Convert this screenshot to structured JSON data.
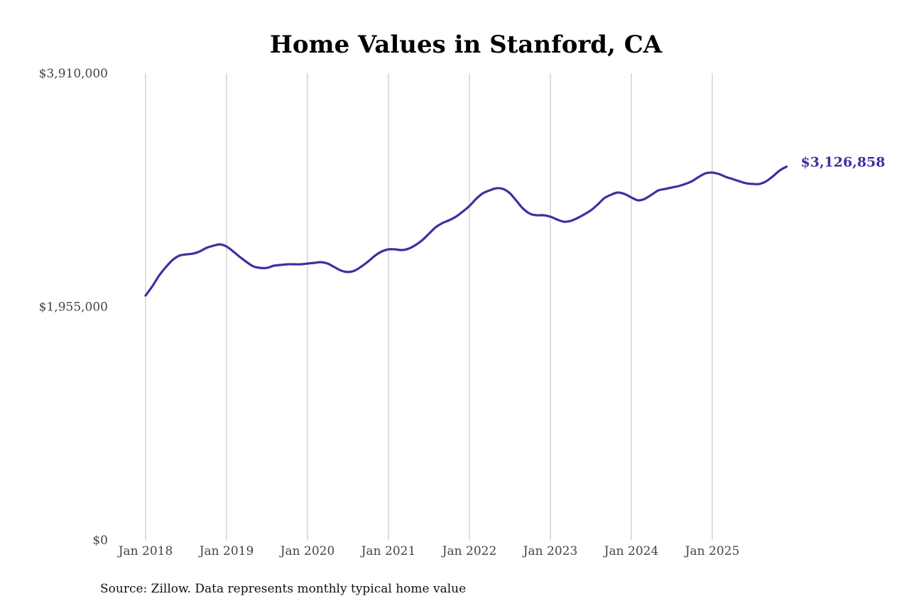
{
  "chart_data": {
    "type": "line",
    "title": "Home Values in Stanford, CA",
    "xlabel": "",
    "ylabel": "",
    "ylim": [
      0,
      3910000
    ],
    "y_tick_labels": [
      "$0",
      "$1,955,000",
      "$3,910,000"
    ],
    "y_ticks": [
      0,
      1955000,
      3910000
    ],
    "x_tick_labels": [
      "Jan 2018",
      "Jan 2019",
      "Jan 2020",
      "Jan 2021",
      "Jan 2022",
      "Jan 2023",
      "Jan 2024",
      "Jan 2025"
    ],
    "x_ticks": [
      "2018-01",
      "2019-01",
      "2020-01",
      "2021-01",
      "2022-01",
      "2023-01",
      "2024-01",
      "2025-01"
    ],
    "xlim": [
      "2018-01",
      "2025-12"
    ],
    "grid": "vertical lines at x ticks",
    "line_color": "#3a32a0",
    "grid_color": "#bdbdbd",
    "end_label": "$3,126,858",
    "source": "Source: Zillow. Data represents monthly typical home value",
    "series": [
      {
        "x": [
          "2018-01",
          "2018-02",
          "2018-03",
          "2018-04",
          "2018-05",
          "2018-06",
          "2018-07",
          "2018-08",
          "2018-09",
          "2018-10",
          "2018-11",
          "2018-12",
          "2019-01",
          "2019-02",
          "2019-03",
          "2019-04",
          "2019-05",
          "2019-06",
          "2019-07",
          "2019-08",
          "2019-09",
          "2019-10",
          "2019-11",
          "2019-12",
          "2020-01",
          "2020-02",
          "2020-03",
          "2020-04",
          "2020-05",
          "2020-06",
          "2020-07",
          "2020-08",
          "2020-09",
          "2020-10",
          "2020-11",
          "2020-12",
          "2021-01",
          "2021-02",
          "2021-03",
          "2021-04",
          "2021-05",
          "2021-06",
          "2021-07",
          "2021-08",
          "2021-09",
          "2021-10",
          "2021-11",
          "2021-12",
          "2022-01",
          "2022-02",
          "2022-03",
          "2022-04",
          "2022-05",
          "2022-06",
          "2022-07",
          "2022-08",
          "2022-09",
          "2022-10",
          "2022-11",
          "2022-12",
          "2023-01",
          "2023-02",
          "2023-03",
          "2023-04",
          "2023-05",
          "2023-06",
          "2023-07",
          "2023-08",
          "2023-09",
          "2023-10",
          "2023-11",
          "2023-12",
          "2024-01",
          "2024-02",
          "2024-03",
          "2024-04",
          "2024-05",
          "2024-06",
          "2024-07",
          "2024-08",
          "2024-09",
          "2024-10",
          "2024-11",
          "2024-12",
          "2025-01",
          "2025-02",
          "2025-03",
          "2025-04",
          "2025-05",
          "2025-06",
          "2025-07",
          "2025-08",
          "2025-09",
          "2025-10",
          "2025-11",
          "2025-12"
        ],
        "values": [
          2047000,
          2125000,
          2214000,
          2285000,
          2345000,
          2381000,
          2392000,
          2398000,
          2416000,
          2446000,
          2464000,
          2476000,
          2458000,
          2416000,
          2369000,
          2327000,
          2291000,
          2279000,
          2279000,
          2297000,
          2303000,
          2309000,
          2309000,
          2309000,
          2315000,
          2321000,
          2327000,
          2315000,
          2285000,
          2256000,
          2244000,
          2256000,
          2291000,
          2333000,
          2381000,
          2416000,
          2434000,
          2434000,
          2428000,
          2440000,
          2470000,
          2511000,
          2565000,
          2619000,
          2654000,
          2678000,
          2708000,
          2750000,
          2797000,
          2857000,
          2904000,
          2928000,
          2946000,
          2940000,
          2904000,
          2839000,
          2773000,
          2732000,
          2720000,
          2720000,
          2708000,
          2684000,
          2666000,
          2672000,
          2696000,
          2726000,
          2761000,
          2809000,
          2863000,
          2892000,
          2910000,
          2898000,
          2869000,
          2845000,
          2857000,
          2892000,
          2928000,
          2940000,
          2952000,
          2964000,
          2982000,
          3005000,
          3041000,
          3071000,
          3077000,
          3065000,
          3041000,
          3023000,
          3005000,
          2988000,
          2982000,
          2982000,
          3005000,
          3047000,
          3095000,
          3126858
        ]
      }
    ]
  }
}
